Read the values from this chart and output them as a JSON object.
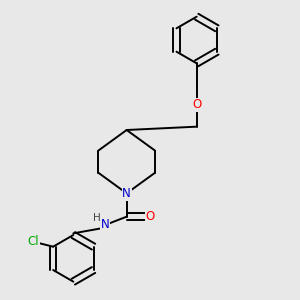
{
  "background_color": "#e8e8e8",
  "atom_colors": {
    "N": "#0000cc",
    "O": "#ff0000",
    "Cl": "#00aa00",
    "C": "#000000",
    "H": "#444444"
  },
  "line_color": "#000000",
  "line_width": 1.4,
  "font_size_atoms": 8.5,
  "font_size_H": 7.5
}
